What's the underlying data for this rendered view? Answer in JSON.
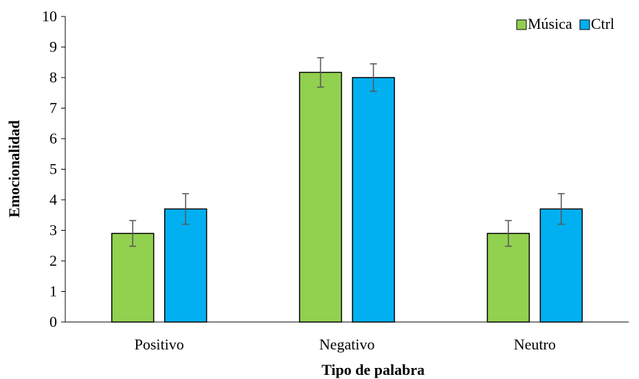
{
  "chart_data": {
    "type": "bar",
    "categories": [
      "Positivo",
      "Negativo",
      "Neutro"
    ],
    "series": [
      {
        "name": "Música",
        "values": [
          2.9,
          8.17,
          2.9
        ],
        "errors": [
          0.42,
          0.48,
          0.42
        ],
        "color": "#92d050"
      },
      {
        "name": "Ctrl",
        "values": [
          3.7,
          8.0,
          3.7
        ],
        "errors": [
          0.5,
          0.45,
          0.5
        ],
        "color": "#00b0f0"
      }
    ],
    "xlabel": "Tipo de palabra",
    "ylabel": "Emocionalidad",
    "ylim": [
      0,
      10
    ],
    "yticks": [
      "0",
      "1",
      "2",
      "3",
      "4",
      "5",
      "6",
      "7",
      "8",
      "9",
      "10"
    ],
    "grid": false,
    "legend_position": "top-right"
  }
}
